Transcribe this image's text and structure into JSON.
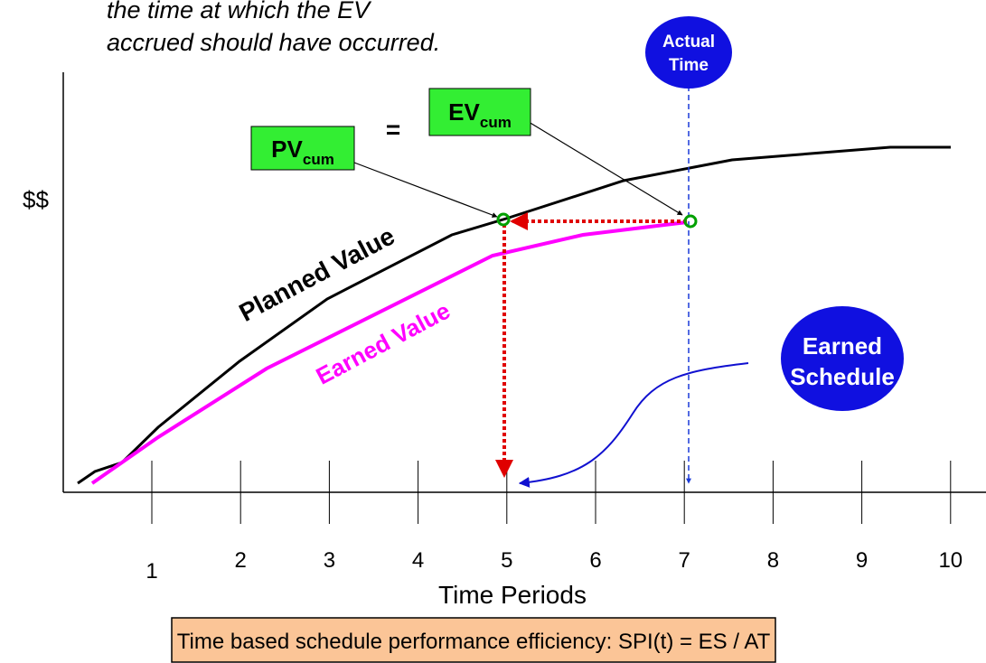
{
  "header": {
    "lines": [
      "the time at which the EV",
      "accrued should have occurred."
    ]
  },
  "callouts": {
    "actual_time": [
      "Actual",
      "Time"
    ],
    "earned_schedule": [
      "Earned",
      "Schedule"
    ],
    "pv": {
      "main": "PV",
      "sub": "cum"
    },
    "ev": {
      "main": "EV",
      "sub": "cum"
    },
    "equals": "="
  },
  "curves": {
    "planned": "Planned Value",
    "earned": "Earned Value"
  },
  "axis": {
    "y_label": "$$",
    "x_label": "Time Periods",
    "ticks": [
      "1",
      "2",
      "3",
      "4",
      "5",
      "6",
      "7",
      "8",
      "9",
      "10"
    ]
  },
  "formula": "Time based schedule performance efficiency: SPI(t) = ES / AT"
}
